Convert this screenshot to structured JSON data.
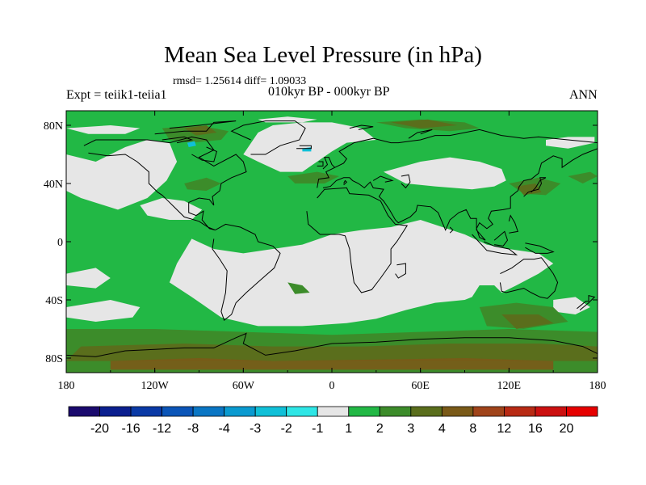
{
  "title": "Mean Sea Level Pressure (in hPa)",
  "stats": "rmsd= 1.25614 diff= 1.09033",
  "expt": "Expt = teiik1-teiia1",
  "period": "010kyr BP - 000kyr BP",
  "season": "ANN",
  "axes": {
    "x_ticks": [
      "180",
      "120W",
      "60W",
      "0",
      "60E",
      "120E",
      "180"
    ],
    "y_ticks": [
      "80N",
      "40N",
      "0",
      "40S",
      "80S"
    ]
  },
  "colorbar": {
    "labels": [
      "-20",
      "-16",
      "-12",
      "-8",
      "-4",
      "-3",
      "-2",
      "-1",
      "1",
      "2",
      "3",
      "4",
      "8",
      "12",
      "16",
      "20"
    ],
    "colors": [
      "#1a0a6e",
      "#0b1f8f",
      "#0a3aa6",
      "#0b55b8",
      "#0a76c4",
      "#0a9ad0",
      "#10c0d8",
      "#2ee6e6",
      "#e6e6e6",
      "#22b845",
      "#3c8c2a",
      "#5a6e1c",
      "#7a5a18",
      "#a0441a",
      "#b82a14",
      "#cc1010",
      "#e60000"
    ]
  },
  "colors": {
    "background": "#e6e6e6",
    "positive_1_2": "#22b845",
    "positive_2_3": "#3c8c2a",
    "positive_3_4": "#5a6e1c",
    "positive_4_8": "#7a5a18",
    "negative_2_1": "#10c0d8"
  }
}
